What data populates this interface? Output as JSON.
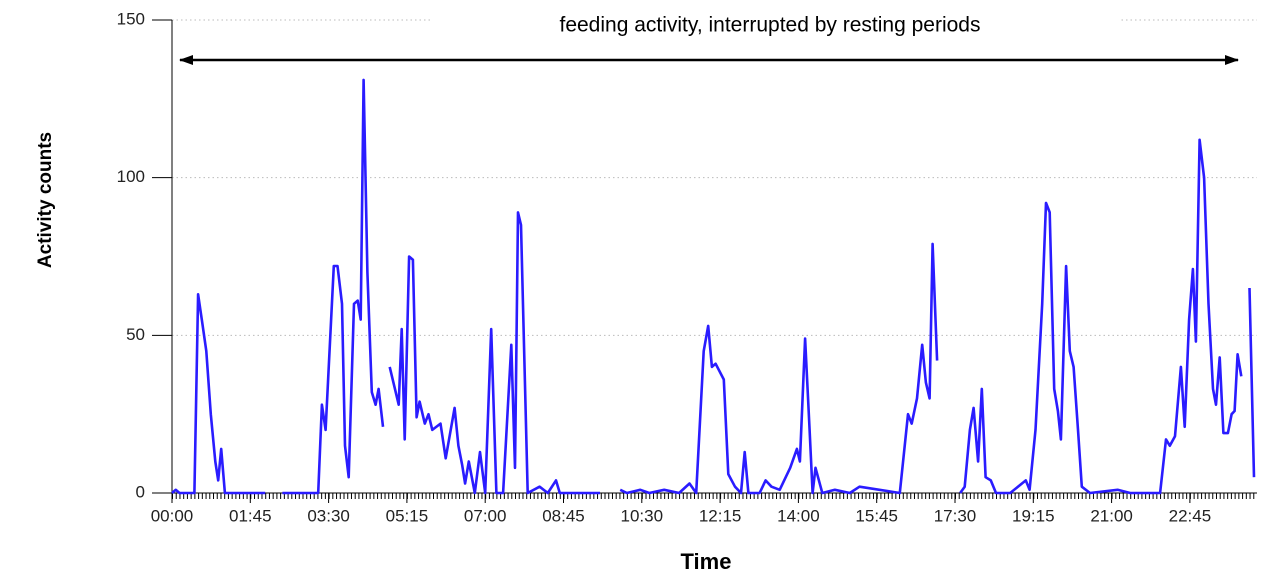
{
  "chart_data": {
    "type": "line",
    "annotation": "feeding activity, interrupted by resting periods",
    "x_label": "Time",
    "y_label": "Activity counts",
    "color": "#2a1cff",
    "grid": true,
    "x": [
      0,
      5,
      10,
      20,
      30,
      35,
      40,
      46,
      52,
      58,
      62,
      66,
      71,
      80,
      100,
      125,
      135,
      148,
      170,
      196,
      201,
      206,
      217,
      222,
      228,
      232,
      237,
      244,
      249,
      253,
      257,
      262,
      268,
      273,
      277,
      283,
      287,
      292,
      304,
      308,
      312,
      318,
      323,
      328,
      332,
      339,
      344,
      349,
      360,
      367,
      379,
      384,
      389,
      393,
      398,
      406,
      413,
      420,
      428,
      435,
      444,
      455,
      460,
      464,
      468,
      477,
      493,
      504,
      515,
      520,
      574,
      590,
      601,
      610,
      628,
      640,
      660,
      680,
      694,
      703,
      713,
      719,
      724,
      729,
      740,
      746,
      755,
      763,
      768,
      773,
      788,
      796,
      804,
      815,
      829,
      838,
      842,
      849,
      855,
      859,
      863,
      872,
      889,
      909,
      922,
      976,
      987,
      992,
      999,
      1006,
      1011,
      1016,
      1020,
      1026,
      1040,
      1057,
      1063,
      1070,
      1075,
      1081,
      1086,
      1091,
      1098,
      1105,
      1124,
      1145,
      1150,
      1158,
      1167,
      1172,
      1177,
      1183,
      1188,
      1192,
      1199,
      1204,
      1209,
      1215,
      1220,
      1231,
      1268,
      1285,
      1325,
      1333,
      1338,
      1345,
      1353,
      1358,
      1364,
      1369,
      1373,
      1378,
      1384,
      1390,
      1396,
      1400,
      1405,
      1410,
      1416,
      1421,
      1425,
      1429,
      1434,
      1440,
      1445,
      1451
    ],
    "values": [
      0,
      1,
      0,
      0,
      0,
      63,
      55,
      45,
      25,
      10,
      4,
      14,
      0,
      0,
      0,
      0,
      null,
      0,
      0,
      0,
      28,
      20,
      72,
      72,
      60,
      15,
      5,
      60,
      61,
      55,
      131,
      70,
      32,
      28,
      33,
      21,
      null,
      40,
      28,
      52,
      17,
      75,
      74,
      24,
      29,
      22,
      25,
      20,
      22,
      11,
      27,
      15,
      9,
      3,
      10,
      0,
      13,
      0,
      52,
      0,
      0,
      47,
      8,
      89,
      85,
      0,
      2,
      0,
      4,
      0,
      0,
      null,
      1,
      0,
      1,
      0,
      1,
      0,
      3,
      0,
      45,
      53,
      40,
      41,
      36,
      6,
      2,
      0,
      13,
      0,
      0,
      4,
      2,
      1,
      8,
      14,
      10,
      49,
      20,
      0,
      8,
      0,
      1,
      0,
      2,
      0,
      25,
      22,
      30,
      47,
      35,
      30,
      79,
      42,
      null,
      0,
      2,
      20,
      27,
      10,
      33,
      5,
      4,
      0,
      0,
      4,
      1,
      20,
      60,
      92,
      89,
      33,
      26,
      17,
      72,
      45,
      40,
      20,
      2,
      0,
      1,
      0,
      0,
      17,
      15,
      18,
      40,
      21,
      55,
      71,
      48,
      112,
      100,
      60,
      33,
      28,
      43,
      19,
      19,
      25,
      26,
      44,
      37,
      null,
      65,
      5
    ],
    "xlim": [
      0,
      1455
    ],
    "ylim": [
      0,
      150
    ],
    "xticks": [
      {
        "value": 0,
        "label": "00:00"
      },
      {
        "value": 105,
        "label": "01:45"
      },
      {
        "value": 210,
        "label": "03:30"
      },
      {
        "value": 315,
        "label": "05:15"
      },
      {
        "value": 420,
        "label": "07:00"
      },
      {
        "value": 525,
        "label": "08:45"
      },
      {
        "value": 630,
        "label": "10:30"
      },
      {
        "value": 735,
        "label": "12:15"
      },
      {
        "value": 840,
        "label": "14:00"
      },
      {
        "value": 945,
        "label": "15:45"
      },
      {
        "value": 1050,
        "label": "17:30"
      },
      {
        "value": 1155,
        "label": "19:15"
      },
      {
        "value": 1260,
        "label": "21:00"
      },
      {
        "value": 1365,
        "label": "22:45"
      }
    ],
    "yticks": [
      0,
      50,
      100,
      150
    ]
  }
}
